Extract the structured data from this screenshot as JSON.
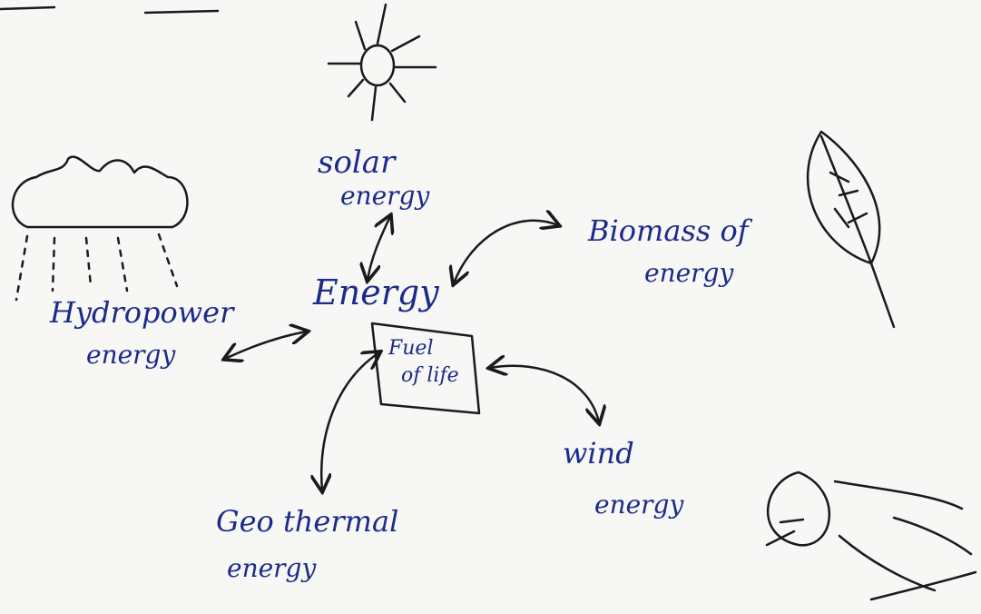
{
  "center": {
    "label": "Energy",
    "box": [
      "Fuel",
      "of life"
    ]
  },
  "nodes": [
    {
      "lines": [
        "solar",
        "energy"
      ]
    },
    {
      "lines": [
        "Biomass of",
        "energy"
      ]
    },
    {
      "lines": [
        "Hydropower",
        "energy"
      ]
    },
    {
      "lines": [
        "Geo thermal",
        "energy"
      ]
    },
    {
      "lines": [
        "wind",
        "energy"
      ]
    }
  ]
}
